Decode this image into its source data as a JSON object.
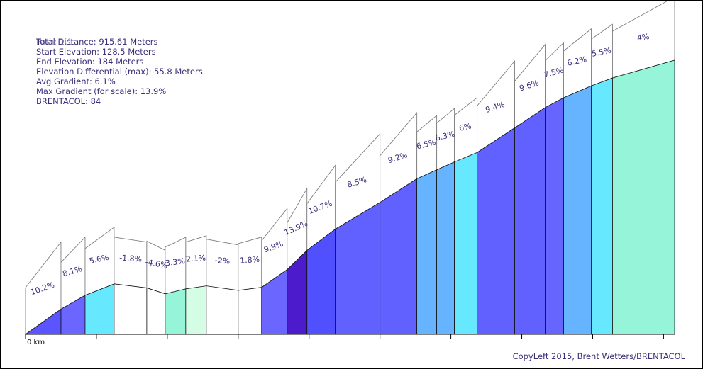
{
  "stats": {
    "overlap_text": "Path: 1.1",
    "total_distance": "Total Distance: 915.61 Meters",
    "start_elevation": "Start Elevation: 128.5 Meters",
    "end_elevation": "End Elevation: 184 Meters",
    "elevation_differential": "Elevation Differential (max): 55.8 Meters",
    "avg_gradient": "Avg Gradient: 6.1%",
    "max_gradient": "Max Gradient (for scale): 13.9%",
    "brentacol": "BRENTACOL: 84"
  },
  "credit": "CopyLeft 2015, Brent Wetters/BRENTACOL",
  "chart_data": {
    "type": "area",
    "title": "",
    "xlabel": "",
    "ylabel": "",
    "x_tick_label": "0 km",
    "xlim": [
      0,
      915.61
    ],
    "ylim": [
      128.5,
      184
    ],
    "distance_unit": "Meters",
    "segments": [
      {
        "gradient": "10.2%",
        "start_m": 0,
        "end_m": 50,
        "start_elev": 128.5,
        "end_elev": 133.6,
        "color": "#5a55ff"
      },
      {
        "gradient": "8.1%",
        "start_m": 50,
        "end_m": 84,
        "start_elev": 133.6,
        "end_elev": 136.4,
        "color": "#6a66ff"
      },
      {
        "gradient": "5.6%",
        "start_m": 84,
        "end_m": 125,
        "start_elev": 136.4,
        "end_elev": 138.7,
        "color": "#66e9ff"
      },
      {
        "gradient": "-1.8%",
        "start_m": 125,
        "end_m": 171,
        "start_elev": 138.7,
        "end_elev": 137.9,
        "color": "#ffffff"
      },
      {
        "gradient": "-4.6%",
        "start_m": 171,
        "end_m": 197,
        "start_elev": 137.9,
        "end_elev": 136.7,
        "color": "#ffffff"
      },
      {
        "gradient": "3.3%",
        "start_m": 197,
        "end_m": 226,
        "start_elev": 136.7,
        "end_elev": 137.7,
        "color": "#96f5d8"
      },
      {
        "gradient": "2.1%",
        "start_m": 226,
        "end_m": 255,
        "start_elev": 137.7,
        "end_elev": 138.3,
        "color": "#d4fde6"
      },
      {
        "gradient": "-2%",
        "start_m": 255,
        "end_m": 300,
        "start_elev": 138.3,
        "end_elev": 137.4,
        "color": "#ffffff"
      },
      {
        "gradient": "1.8%",
        "start_m": 300,
        "end_m": 333,
        "start_elev": 137.4,
        "end_elev": 138.0,
        "color": "#ffffff"
      },
      {
        "gradient": "9.9%",
        "start_m": 333,
        "end_m": 369,
        "start_elev": 138.0,
        "end_elev": 141.6,
        "color": "#6a66ff"
      },
      {
        "gradient": "13.9%",
        "start_m": 369,
        "end_m": 397,
        "start_elev": 141.6,
        "end_elev": 145.5,
        "color": "#4c1ccc"
      },
      {
        "gradient": "10.7%",
        "start_m": 397,
        "end_m": 437,
        "start_elev": 145.5,
        "end_elev": 149.8,
        "color": "#5050ff"
      },
      {
        "gradient": "8.5%",
        "start_m": 437,
        "end_m": 500,
        "start_elev": 149.8,
        "end_elev": 155.2,
        "color": "#6161ff"
      },
      {
        "gradient": "9.2%",
        "start_m": 500,
        "end_m": 552,
        "start_elev": 155.2,
        "end_elev": 160.0,
        "color": "#6161ff"
      },
      {
        "gradient": "6.5%",
        "start_m": 552,
        "end_m": 580,
        "start_elev": 160.0,
        "end_elev": 161.8,
        "color": "#66b4ff"
      },
      {
        "gradient": "6.3%",
        "start_m": 580,
        "end_m": 605,
        "start_elev": 161.8,
        "end_elev": 163.4,
        "color": "#66b4ff"
      },
      {
        "gradient": "6%",
        "start_m": 605,
        "end_m": 637,
        "start_elev": 163.4,
        "end_elev": 165.3,
        "color": "#66e9ff"
      },
      {
        "gradient": "9.4%",
        "start_m": 637,
        "end_m": 690,
        "start_elev": 165.3,
        "end_elev": 170.3,
        "color": "#6161ff"
      },
      {
        "gradient": "9.6%",
        "start_m": 690,
        "end_m": 733,
        "start_elev": 170.3,
        "end_elev": 174.4,
        "color": "#6161ff"
      },
      {
        "gradient": "7.5%",
        "start_m": 733,
        "end_m": 759,
        "start_elev": 174.4,
        "end_elev": 176.4,
        "color": "#6666ff"
      },
      {
        "gradient": "6.2%",
        "start_m": 759,
        "end_m": 798,
        "start_elev": 176.4,
        "end_elev": 178.8,
        "color": "#66b4ff"
      },
      {
        "gradient": "5.5%",
        "start_m": 798,
        "end_m": 828,
        "start_elev": 178.8,
        "end_elev": 180.4,
        "color": "#66e9ff"
      },
      {
        "gradient": "4%",
        "start_m": 828,
        "end_m": 915.61,
        "start_elev": 180.4,
        "end_elev": 184.0,
        "color": "#96f5d8"
      }
    ]
  }
}
